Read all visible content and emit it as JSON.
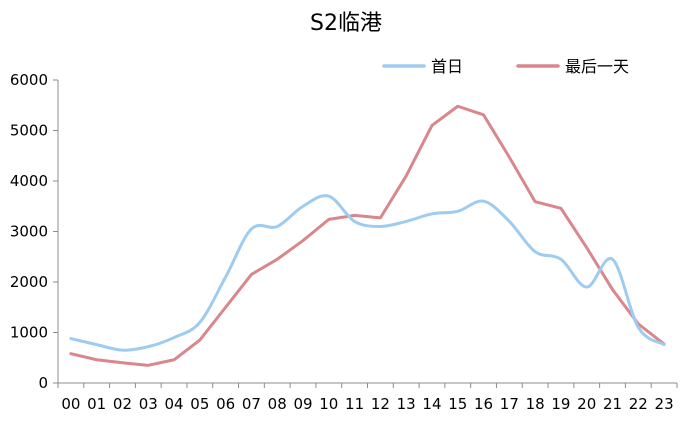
{
  "chart_data": {
    "type": "line",
    "title": "S2临港",
    "xlabel": "",
    "ylabel": "",
    "categories": [
      "00",
      "01",
      "02",
      "03",
      "04",
      "05",
      "06",
      "07",
      "08",
      "09",
      "10",
      "11",
      "12",
      "13",
      "14",
      "15",
      "16",
      "17",
      "18",
      "19",
      "20",
      "21",
      "22",
      "23"
    ],
    "ylim": [
      0,
      6000
    ],
    "yticks": [
      0,
      1000,
      2000,
      3000,
      4000,
      5000,
      6000
    ],
    "grid": false,
    "legend_position": "top-right",
    "series": [
      {
        "name": "首日",
        "color": "#9ecbef",
        "smooth": true,
        "values": [
          880,
          760,
          650,
          720,
          900,
          1200,
          2100,
          3050,
          3100,
          3500,
          3700,
          3200,
          3100,
          3200,
          3350,
          3400,
          3600,
          3200,
          2600,
          2450,
          1900,
          2450,
          1100,
          760
        ]
      },
      {
        "name": "最后一天",
        "color": "#d9868c",
        "smooth": false,
        "values": [
          580,
          460,
          400,
          350,
          460,
          850,
          1500,
          2150,
          2450,
          2820,
          3240,
          3320,
          3270,
          4100,
          5100,
          5480,
          5310,
          4470,
          3590,
          3460,
          2680,
          1850,
          1170,
          770
        ]
      }
    ]
  }
}
